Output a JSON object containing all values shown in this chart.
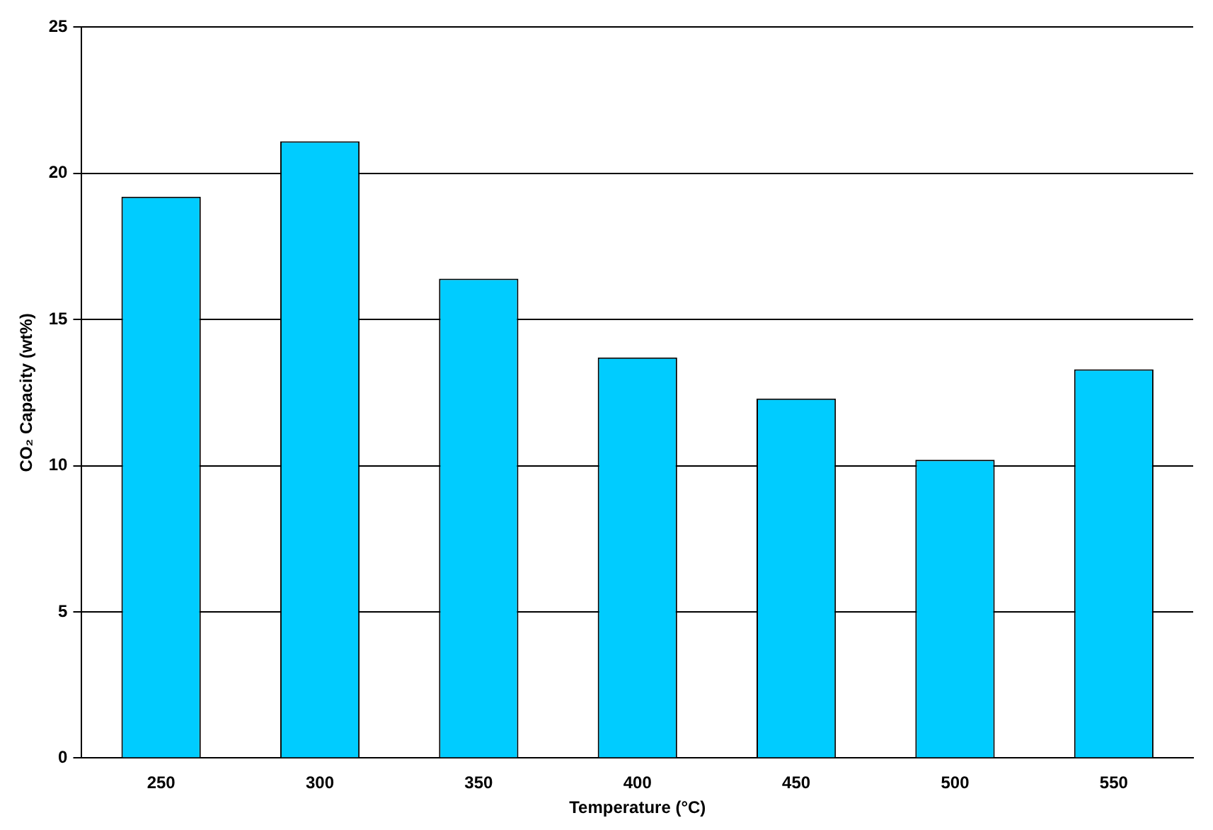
{
  "chart_data": {
    "type": "bar",
    "xlabel": "Temperature (°C)",
    "ylabel": "CO₂ Capacity (wt%)",
    "categories": [
      "250",
      "300",
      "350",
      "400",
      "450",
      "500",
      "550"
    ],
    "values": [
      19.2,
      21.1,
      16.4,
      13.7,
      12.3,
      10.2,
      13.3
    ],
    "color": "#00ccff",
    "ylim": [
      0,
      25
    ],
    "yticks": [
      0,
      5,
      10,
      15,
      20,
      25
    ],
    "grid": "y",
    "legend": false
  }
}
